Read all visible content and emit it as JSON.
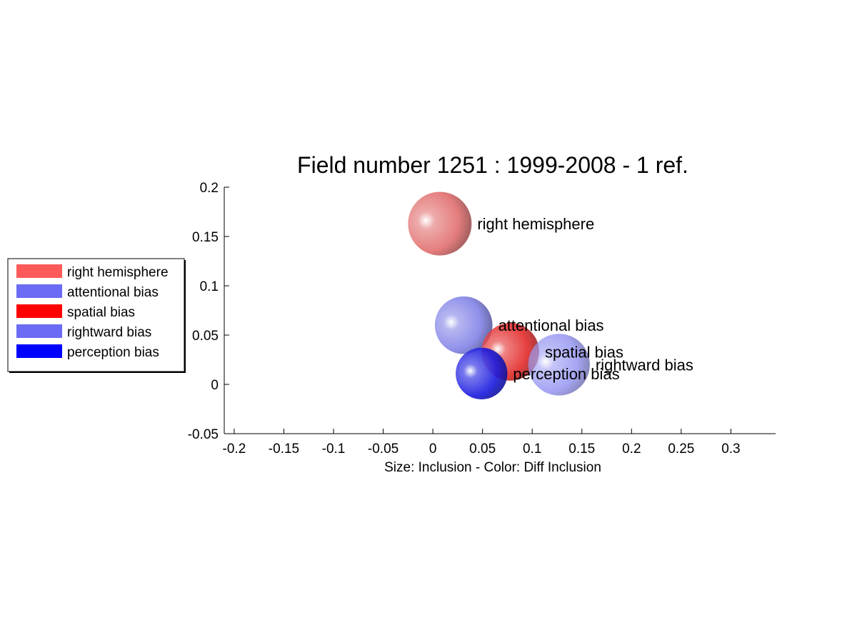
{
  "chart_data": {
    "type": "scatter",
    "title": "Field number 1251 : 1999-2008  - 1 ref.",
    "xlabel": "Size: Inclusion - Color: Diff Inclusion",
    "ylabel": "",
    "xlim": [
      -0.21,
      0.345
    ],
    "ylim": [
      -0.05,
      0.2
    ],
    "xticks": [
      -0.2,
      -0.15,
      -0.1,
      -0.05,
      0,
      0.05,
      0.1,
      0.15,
      0.2,
      0.25,
      0.3
    ],
    "xtick_labels": [
      "-0.2",
      "-0.15",
      "-0.1",
      "-0.05",
      "0",
      "0.05",
      "0.1",
      "0.15",
      "0.2",
      "0.25",
      "0.3"
    ],
    "yticks": [
      -0.05,
      0,
      0.05,
      0.1,
      0.15,
      0.2
    ],
    "ytick_labels": [
      "-0.05",
      "0",
      "0.05",
      "0.1",
      "0.15",
      "0.2"
    ],
    "grid": false,
    "legend_position": "left",
    "points": [
      {
        "label": "right hemisphere",
        "x": 0.007,
        "y": 0.163,
        "size": 0.032,
        "color": "#e06666",
        "alpha": 0.85
      },
      {
        "label": "attentional bias",
        "x": 0.031,
        "y": 0.06,
        "size": 0.029,
        "color": "#7b7be6",
        "alpha": 0.85
      },
      {
        "label": "spatial bias",
        "x": 0.078,
        "y": 0.033,
        "size": 0.029,
        "color": "#e01515",
        "alpha": 0.82
      },
      {
        "label": "rightward bias",
        "x": 0.127,
        "y": 0.02,
        "size": 0.031,
        "color": "#8080f0",
        "alpha": 0.7
      },
      {
        "label": "perception bias",
        "x": 0.049,
        "y": 0.011,
        "size": 0.026,
        "color": "#1a1ae0",
        "alpha": 0.9
      }
    ],
    "legend": [
      {
        "label": "right hemisphere",
        "color": "#ff5a5a"
      },
      {
        "label": "attentional bias",
        "color": "#6b6bf5"
      },
      {
        "label": "spatial bias",
        "color": "#ff0000"
      },
      {
        "label": "rightward bias",
        "color": "#6b6bf5"
      },
      {
        "label": "perception bias",
        "color": "#0000ff"
      }
    ]
  }
}
